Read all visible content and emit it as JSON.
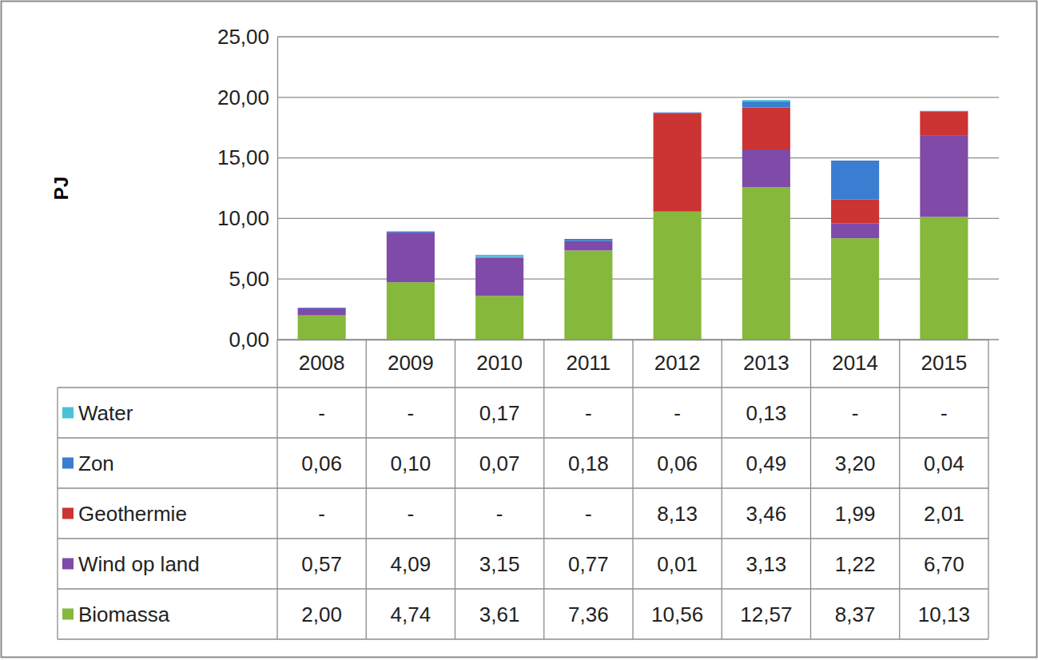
{
  "chart_data": {
    "type": "bar",
    "stacked": true,
    "grid": true,
    "legend": "bottom",
    "y_label": "PJ",
    "categories": [
      "2008",
      "2009",
      "2010",
      "2011",
      "2012",
      "2013",
      "2014",
      "2015"
    ],
    "ylim": [
      0,
      25
    ],
    "yticks": [
      {
        "value": 0,
        "label": "0,00"
      },
      {
        "value": 5,
        "label": "5,00"
      },
      {
        "value": 10,
        "label": "10,00"
      },
      {
        "value": 15,
        "label": "15,00"
      },
      {
        "value": 20,
        "label": "20,00"
      },
      {
        "value": 25,
        "label": "25,00"
      }
    ],
    "series": [
      {
        "name": "Water",
        "color": "#4bc0d9",
        "values": [
          null,
          null,
          0.17,
          null,
          null,
          0.13,
          null,
          null
        ],
        "value_labels": [
          "-",
          "-",
          "0,17",
          "-",
          "-",
          "0,13",
          "-",
          "-"
        ]
      },
      {
        "name": "Zon",
        "color": "#3b7dd0",
        "values": [
          0.06,
          0.1,
          0.07,
          0.18,
          0.06,
          0.49,
          3.2,
          0.04
        ],
        "value_labels": [
          "0,06",
          "0,10",
          "0,07",
          "0,18",
          "0,06",
          "0,49",
          "3,20",
          "0,04"
        ]
      },
      {
        "name": "Geothermie",
        "color": "#cc3333",
        "values": [
          null,
          null,
          null,
          null,
          8.13,
          3.46,
          1.99,
          2.01
        ],
        "value_labels": [
          "-",
          "-",
          "-",
          "-",
          "8,13",
          "3,46",
          "1,99",
          "2,01"
        ]
      },
      {
        "name": "Wind op land",
        "color": "#7f4aa8",
        "values": [
          0.57,
          4.09,
          3.15,
          0.77,
          0.01,
          3.13,
          1.22,
          6.7
        ],
        "value_labels": [
          "0,57",
          "4,09",
          "3,15",
          "0,77",
          "0,01",
          "3,13",
          "1,22",
          "6,70"
        ]
      },
      {
        "name": "Biomassa",
        "color": "#86b83c",
        "values": [
          2.0,
          4.74,
          3.61,
          7.36,
          10.56,
          12.57,
          8.37,
          10.13
        ],
        "value_labels": [
          "2,00",
          "4,74",
          "3,61",
          "7,36",
          "10,56",
          "12,57",
          "8,37",
          "10,13"
        ]
      }
    ]
  }
}
